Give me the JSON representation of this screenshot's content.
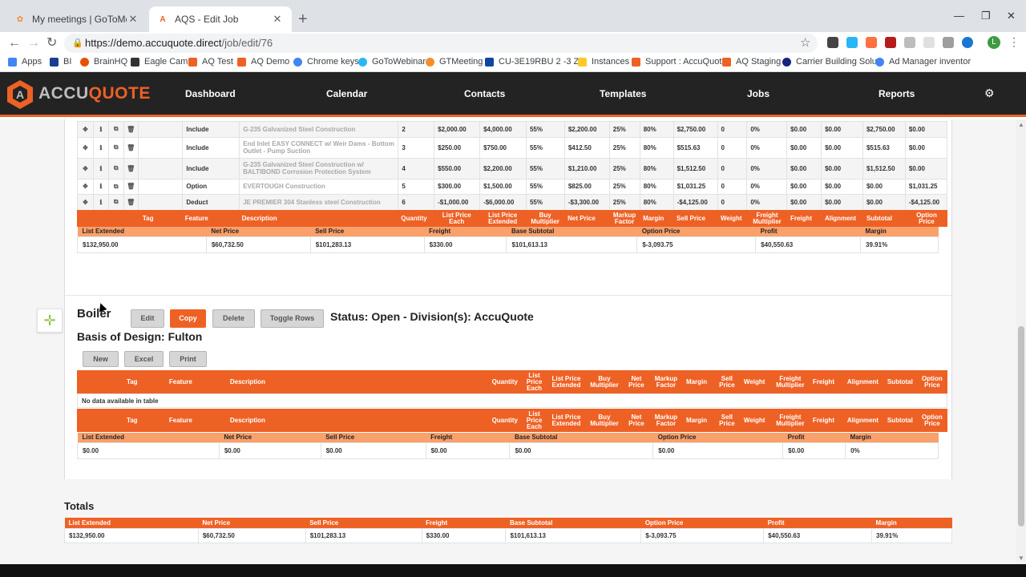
{
  "browser": {
    "tabs": [
      {
        "label": "My meetings | GoToMeeting",
        "active": false
      },
      {
        "label": "AQS - Edit Job",
        "active": true
      }
    ],
    "url_host": "https://demo.accuquote.direct",
    "url_path": "/job/edit/76",
    "profile_initial": "L",
    "bookmarks": [
      "Apps",
      "BI",
      "BrainHQ",
      "Eagle Cam",
      "AQ Test",
      "AQ Demo",
      "Chrome keys",
      "GoToWebinar",
      "GTMeeting",
      "CU-3E19RBU 2 -3 Zo",
      "Instances",
      "Support : AccuQuote",
      "AQ Staging",
      "Carrier Building Solu",
      "Ad Manager inventor"
    ]
  },
  "app": {
    "logo": {
      "prefix": "ACCU",
      "suffix": "QUOTE"
    },
    "nav": [
      "Dashboard",
      "Calendar",
      "Contacts",
      "Templates",
      "Jobs",
      "Reports"
    ]
  },
  "line_items": [
    {
      "type": "Include",
      "description": "G-235 Galvanized Steel Construction",
      "qty": "2",
      "list_each": "$2,000.00",
      "list_ext": "$4,000.00",
      "buy_mult": "55%",
      "net": "$2,200.00",
      "markup": "25%",
      "margin": "80%",
      "sell": "$2,750.00",
      "weight": "0",
      "freight_mult": "0%",
      "freight": "$0.00",
      "alignment": "$0.00",
      "subtotal": "$2,750.00",
      "option": "$0.00"
    },
    {
      "type": "Include",
      "description": "End Inlet EASY CONNECT w/ Weir Dams - Bottom Outlet - Pump Suction",
      "qty": "3",
      "list_each": "$250.00",
      "list_ext": "$750.00",
      "buy_mult": "55%",
      "net": "$412.50",
      "markup": "25%",
      "margin": "80%",
      "sell": "$515.63",
      "weight": "0",
      "freight_mult": "0%",
      "freight": "$0.00",
      "alignment": "$0.00",
      "subtotal": "$515.63",
      "option": "$0.00"
    },
    {
      "type": "Include",
      "description": "G-235 Galvanized Steel Construction w/ BALTIBOND Corrosion Protection System",
      "qty": "4",
      "list_each": "$550.00",
      "list_ext": "$2,200.00",
      "buy_mult": "55%",
      "net": "$1,210.00",
      "markup": "25%",
      "margin": "80%",
      "sell": "$1,512.50",
      "weight": "0",
      "freight_mult": "0%",
      "freight": "$0.00",
      "alignment": "$0.00",
      "subtotal": "$1,512.50",
      "option": "$0.00"
    },
    {
      "type": "Option",
      "description": "EVERTOUGH Construction",
      "qty": "5",
      "list_each": "$300.00",
      "list_ext": "$1,500.00",
      "buy_mult": "55%",
      "net": "$825.00",
      "markup": "25%",
      "margin": "80%",
      "sell": "$1,031.25",
      "weight": "0",
      "freight_mult": "0%",
      "freight": "$0.00",
      "alignment": "$0.00",
      "subtotal": "$0.00",
      "option": "$1,031.25"
    },
    {
      "type": "Deduct",
      "description": "JE PREMIER 304 Stanless steel Construction",
      "qty": "6",
      "list_each": "-$1,000.00",
      "list_ext": "-$6,000.00",
      "buy_mult": "55%",
      "net": "-$3,300.00",
      "markup": "25%",
      "margin": "80%",
      "sell": "-$4,125.00",
      "weight": "0",
      "freight_mult": "0%",
      "freight": "$0.00",
      "alignment": "$0.00",
      "subtotal": "$0.00",
      "option": "-$4,125.00"
    }
  ],
  "columns": {
    "tag": "Tag",
    "feature": "Feature",
    "description": "Description",
    "quantity": "Quantity",
    "list_each": "List Price Each",
    "list_ext": "List Price Extended",
    "buy_mult": "Buy Multiplier",
    "net": "Net Price",
    "markup": "Markup Factor",
    "margin": "Margin",
    "sell": "Sell Price",
    "weight": "Weight",
    "freight_mult": "Freight Multiplier",
    "freight": "Freight",
    "alignment": "Alignment",
    "subtotal": "Subtotal",
    "option": "Option Price"
  },
  "summary_headers": [
    "List Extended",
    "Net Price",
    "Sell Price",
    "Freight",
    "Base Subtotal",
    "Option Price",
    "Profit",
    "Margin"
  ],
  "section1_summary": [
    "$132,950.00",
    "$60,732.50",
    "$101,283.13",
    "$330.00",
    "$101,613.13",
    "$-3,093.75",
    "$40,550.63",
    "39.91%"
  ],
  "boiler": {
    "title": "Boiler",
    "status": "Status: Open - Division(s): AccuQuote",
    "basis": "Basis of Design: Fulton",
    "buttons": {
      "edit": "Edit",
      "copy": "Copy",
      "delete": "Delete",
      "toggle": "Toggle Rows",
      "new": "New",
      "excel": "Excel",
      "print": "Print"
    },
    "empty_text": "No data available in table",
    "summary": [
      "$0.00",
      "$0.00",
      "$0.00",
      "$0.00",
      "$0.00",
      "$0.00",
      "$0.00",
      "0%"
    ]
  },
  "totals": {
    "title": "Totals",
    "values": [
      "$132,950.00",
      "$60,732.50",
      "$101,283.13",
      "$330.00",
      "$101,613.13",
      "$-3,093.75",
      "$40,550.63",
      "39.91%"
    ]
  },
  "colors": {
    "brand_orange": "#ee6125",
    "summary_orange": "#f9a06b",
    "header_dark": "#232323"
  }
}
